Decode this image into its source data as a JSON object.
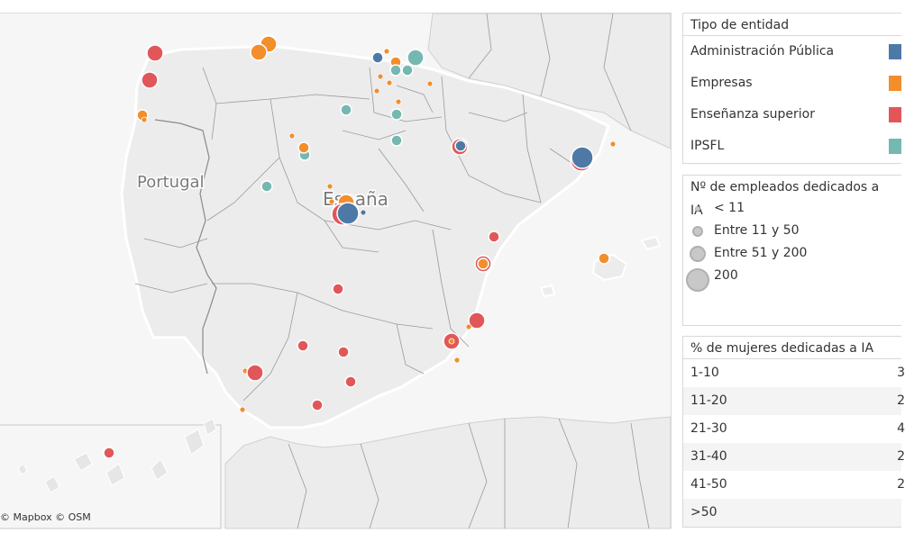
{
  "map": {
    "country_labels": {
      "portugal": "Portugal",
      "espana": "España"
    },
    "attribution": "© Mapbox  © OSM",
    "colors": {
      "land": "#ececec",
      "sea": "#f7f7f7",
      "border": "#8c8c8c",
      "Administración Pública": "#4e79a7",
      "Empresas": "#f28e2b",
      "Enseñanza superior": "#e15759",
      "IPSFL": "#76b7b2"
    }
  },
  "legend_type": {
    "title": "Tipo de entidad",
    "items": [
      {
        "label": "Administración Pública",
        "color": "#4e79a7"
      },
      {
        "label": "Empresas",
        "color": "#f28e2b"
      },
      {
        "label": "Enseñanza superior",
        "color": "#e15759"
      },
      {
        "label": "IPSFL",
        "color": "#76b7b2"
      }
    ]
  },
  "legend_size": {
    "title": "Nº de empleados dedicados a IA",
    "items": [
      {
        "label": "< 11"
      },
      {
        "label": "Entre 11 y 50"
      },
      {
        "label": "Entre 51 y 200"
      },
      {
        "label": "200"
      }
    ]
  },
  "legend_women": {
    "title": "% de mujeres dedicadas a IA",
    "rows": [
      {
        "range": "1-10",
        "count": "3"
      },
      {
        "range": "11-20",
        "count": "2"
      },
      {
        "range": "21-30",
        "count": "4"
      },
      {
        "range": "31-40",
        "count": "2"
      },
      {
        "range": "41-50",
        "count": "2"
      },
      {
        "range": ">50",
        "count": ""
      }
    ]
  },
  "markers": [
    {
      "type": "Enseñanza superior",
      "size": 3
    },
    {
      "type": "Enseñanza superior",
      "size": 3
    },
    {
      "type": "Empresas",
      "size": 2
    },
    {
      "type": "Empresas",
      "size": 1
    },
    {
      "type": "IPSFL",
      "size": 3
    },
    {
      "type": "Empresas",
      "size": 3
    },
    {
      "type": "Empresas",
      "size": 3
    },
    {
      "type": "Administración Pública",
      "size": 2
    },
    {
      "type": "IPSFL",
      "size": 3
    },
    {
      "type": "IPSFL",
      "size": 2
    },
    {
      "type": "Empresas",
      "size": 2
    },
    {
      "type": "IPSFL",
      "size": 2
    },
    {
      "type": "Empresas",
      "size": 1
    },
    {
      "type": "IPSFL",
      "size": 2
    },
    {
      "type": "IPSFL",
      "size": 2
    },
    {
      "type": "Empresas",
      "size": 1
    },
    {
      "type": "Empresas",
      "size": 1
    },
    {
      "type": "Empresas",
      "size": 1
    },
    {
      "type": "Empresas",
      "size": 1
    },
    {
      "type": "IPSFL",
      "size": 2
    },
    {
      "type": "Empresas",
      "size": 1
    },
    {
      "type": "IPSFL",
      "size": 2
    },
    {
      "type": "Empresas",
      "size": 2
    },
    {
      "type": "IPSFL",
      "size": 2
    },
    {
      "type": "IPSFL",
      "size": 2
    },
    {
      "type": "Empresas",
      "size": 1
    },
    {
      "type": "Enseñanza superior",
      "size": 3
    },
    {
      "type": "Administración Pública",
      "size": 2
    },
    {
      "type": "Enseñanza superior",
      "size": 4
    },
    {
      "type": "Administración Pública",
      "size": 4
    },
    {
      "type": "Empresas",
      "size": 1
    },
    {
      "type": "Empresas",
      "size": 1
    },
    {
      "type": "Empresas",
      "size": 3
    },
    {
      "type": "Enseñanza superior",
      "size": 4
    },
    {
      "type": "Administración Pública",
      "size": 4
    },
    {
      "type": "Administración Pública",
      "size": 1
    },
    {
      "type": "Empresas",
      "size": 1
    },
    {
      "type": "Enseñanza superior",
      "size": 2
    },
    {
      "type": "Enseñanza superior",
      "size": 3
    },
    {
      "type": "Empresas",
      "size": 2
    },
    {
      "type": "Empresas",
      "size": 2
    },
    {
      "type": "Enseñanza superior",
      "size": 2
    },
    {
      "type": "Enseñanza superior",
      "size": 3
    },
    {
      "type": "Empresas",
      "size": 1
    },
    {
      "type": "Enseñanza superior",
      "size": 3
    },
    {
      "type": "Empresas",
      "size": 1
    },
    {
      "type": "Empresas",
      "size": 1
    },
    {
      "type": "Enseñanza superior",
      "size": 2
    },
    {
      "type": "Enseñanza superior",
      "size": 2
    },
    {
      "type": "Empresas",
      "size": 1
    },
    {
      "type": "Enseñanza superior",
      "size": 3
    },
    {
      "type": "Enseñanza superior",
      "size": 2
    },
    {
      "type": "Empresas",
      "size": 1
    },
    {
      "type": "Enseñanza superior",
      "size": 2
    },
    {
      "type": "Enseñanza superior",
      "size": 2
    }
  ]
}
